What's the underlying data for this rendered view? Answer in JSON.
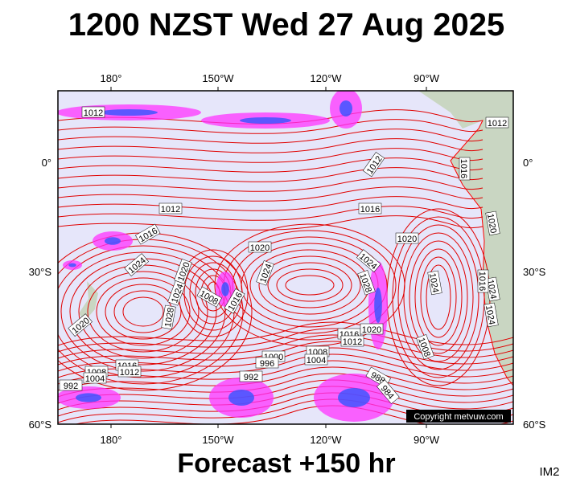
{
  "header": {
    "title": "1200 NZST Wed 27 Aug 2025"
  },
  "map": {
    "longitude_labels": [
      "180°",
      "150°W",
      "120°W",
      "90°W"
    ],
    "latitude_labels": [
      "0°",
      "30°S",
      "60°S"
    ],
    "isobar_labels": [
      1012,
      1012,
      1012,
      1016,
      1012,
      1016,
      1016,
      1020,
      1020,
      1024,
      1020,
      1024,
      1024,
      1028,
      1024,
      1024,
      1008,
      1016,
      1028,
      1020,
      1016,
      1020,
      1012,
      1008,
      1008,
      1004,
      1000,
      996,
      1016,
      1008,
      1012,
      1004,
      992,
      992,
      988,
      984,
      1024,
      1020,
      1024,
      1016
    ],
    "copyright": "Copyright metvuw.com"
  },
  "footer": {
    "forecast": "Forecast +150 hr",
    "code": "IM2"
  }
}
